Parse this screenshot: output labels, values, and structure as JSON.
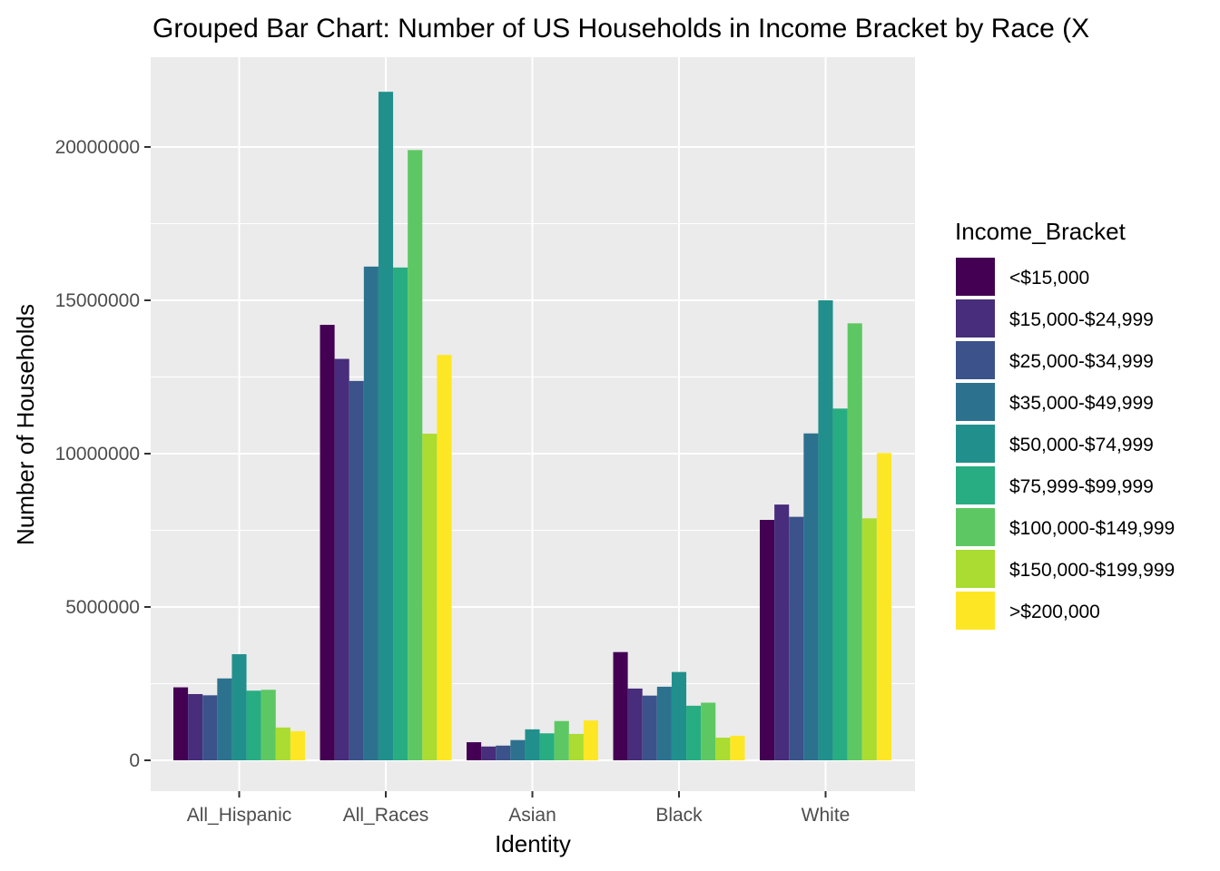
{
  "chart_data": {
    "type": "bar",
    "title": "Grouped Bar Chart: Number of US Households in Income Bracket by Race (X",
    "xlabel": "Identity",
    "ylabel": "Number of Households",
    "categories": [
      "All_Hispanic",
      "All_Races",
      "Asian",
      "Black",
      "White"
    ],
    "ylim": [
      -1050000,
      22900000
    ],
    "yticks": [
      0,
      5000000,
      10000000,
      15000000,
      20000000
    ],
    "ytick_labels": [
      "0",
      "5000000",
      "10000000",
      "15000000",
      "20000000"
    ],
    "grid": true,
    "legend": {
      "title": "Income_Bracket",
      "position": "right"
    },
    "series": [
      {
        "name": "<$15,000",
        "color": "#440154",
        "values": [
          2380000,
          14200000,
          590000,
          3530000,
          7840000
        ]
      },
      {
        "name": "$15,000-$24,999",
        "color": "#472D7B",
        "values": [
          2160000,
          13090000,
          450000,
          2340000,
          8340000
        ]
      },
      {
        "name": "$25,000-$34,999",
        "color": "#3B528B",
        "values": [
          2120000,
          12370000,
          480000,
          2110000,
          7940000
        ]
      },
      {
        "name": "$35,000-$49,999",
        "color": "#2C728E",
        "values": [
          2670000,
          16100000,
          660000,
          2400000,
          10660000
        ]
      },
      {
        "name": "$50,000-$74,999",
        "color": "#21908C",
        "values": [
          3460000,
          21800000,
          1010000,
          2880000,
          15000000
        ]
      },
      {
        "name": "$75,999-$99,999",
        "color": "#27AD81",
        "values": [
          2270000,
          16070000,
          880000,
          1780000,
          11470000
        ]
      },
      {
        "name": "$100,000-$149,999",
        "color": "#5DC863",
        "values": [
          2300000,
          19900000,
          1280000,
          1880000,
          14250000
        ]
      },
      {
        "name": "$150,000-$199,999",
        "color": "#AADC32",
        "values": [
          1070000,
          10650000,
          860000,
          740000,
          7890000
        ]
      },
      {
        "name": ">$200,000",
        "color": "#FDE725",
        "values": [
          950000,
          13220000,
          1300000,
          800000,
          10020000
        ]
      }
    ]
  }
}
